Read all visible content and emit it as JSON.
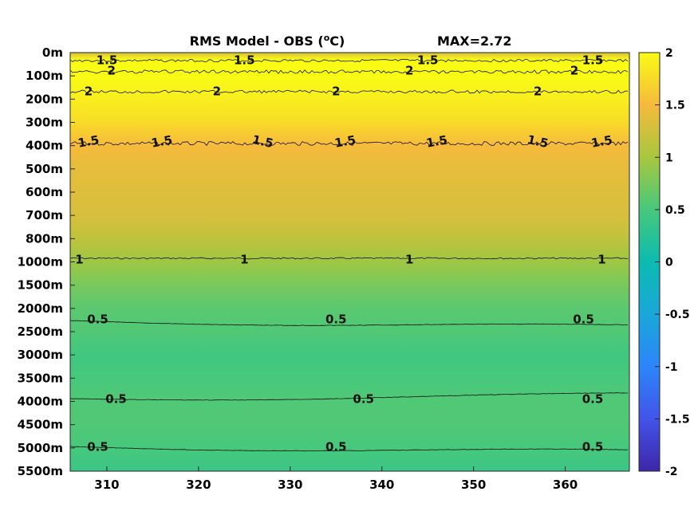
{
  "chart_data": {
    "type": "heatmap",
    "title": "RMS Model - OBS (°C)",
    "title_unit_prefix": "RMS Model - OBS (",
    "title_unit_sup": "o",
    "title_unit_suffix": "C)",
    "max_annotation": "MAX=2.72",
    "xlabel": "",
    "ylabel": "",
    "xlim": [
      306,
      367
    ],
    "x_ticks": [
      310,
      320,
      330,
      340,
      350,
      360
    ],
    "x_tick_labels": [
      "310",
      "320",
      "330",
      "340",
      "350",
      "360"
    ],
    "y_tick_labels": [
      "0m",
      "100m",
      "200m",
      "300m",
      "400m",
      "500m",
      "600m",
      "700m",
      "800m",
      "1000m",
      "1500m",
      "2000m",
      "2500m",
      "3000m",
      "3500m",
      "4000m",
      "4500m",
      "5000m",
      "5500m"
    ],
    "depth_profile": {
      "depth_labels_index": [
        0,
        0.3,
        1,
        2,
        3,
        4,
        5,
        6,
        7,
        8,
        9,
        10,
        11,
        12,
        13,
        14,
        15,
        16,
        17,
        18
      ],
      "rms_values": [
        1.3,
        2.0,
        2.1,
        1.9,
        1.75,
        1.5,
        1.4,
        1.35,
        1.3,
        1.15,
        0.95,
        0.75,
        0.6,
        0.55,
        0.45,
        0.5,
        0.55,
        0.55,
        0.5,
        0.4
      ]
    },
    "colorbar": {
      "range": [
        -2,
        2
      ],
      "ticks": [
        "2",
        "1.5",
        "1",
        "0.5",
        "0",
        "-0.5",
        "-1",
        "-1.5",
        "-2"
      ],
      "colormap": "parula"
    },
    "contours": [
      {
        "level": "1.5",
        "labels_x": [
          310,
          325,
          345,
          363
        ]
      },
      {
        "level": "2",
        "labels_x": [
          308,
          322,
          342,
          357,
          361
        ]
      },
      {
        "level": "1.5",
        "labels_x": [
          308,
          316,
          327,
          336,
          346,
          357,
          364
        ]
      },
      {
        "level": "1",
        "labels_x": [
          307,
          325,
          343,
          364
        ]
      },
      {
        "level": "0.5",
        "labels_x": [
          309,
          335,
          362
        ]
      },
      {
        "level": "0.5",
        "labels_x": [
          311,
          338,
          363
        ]
      },
      {
        "level": "0.5",
        "labels_x": [
          309,
          335,
          363
        ]
      }
    ],
    "grid": false,
    "legend": "colorbar-right"
  }
}
